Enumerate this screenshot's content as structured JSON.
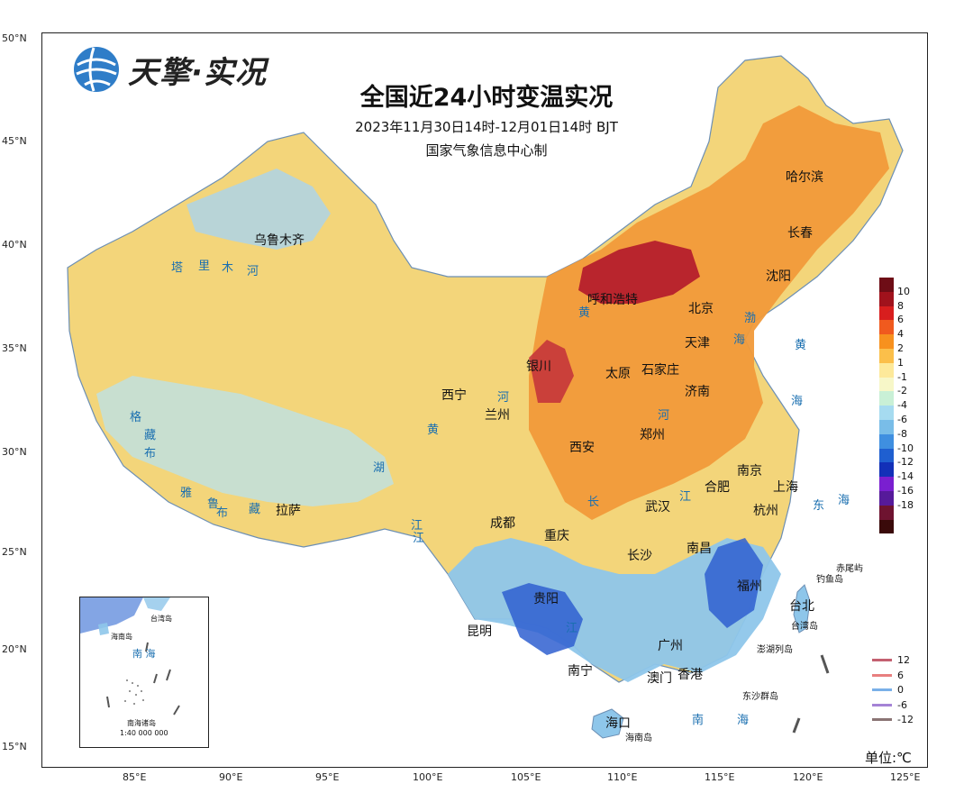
{
  "title": "全国近24小时变温实况",
  "subtitle": "2023年11月30日14时-12月01日14时 BJT",
  "producer": "国家气象信息中心制",
  "brand": "天擎·实况",
  "unit": "单位:℃",
  "lat_ticks": [
    "50°N",
    "45°N",
    "40°N",
    "35°N",
    "30°N",
    "25°N",
    "20°N",
    "15°N"
  ],
  "lon_ticks": [
    "85°E",
    "90°E",
    "95°E",
    "100°E",
    "105°E",
    "110°E",
    "115°E",
    "120°E",
    "125°E"
  ],
  "cities": [
    {
      "name": "哈尔滨"
    },
    {
      "name": "长春"
    },
    {
      "name": "沈阳"
    },
    {
      "name": "乌鲁木齐"
    },
    {
      "name": "呼和浩特"
    },
    {
      "name": "北京"
    },
    {
      "name": "天津"
    },
    {
      "name": "银川"
    },
    {
      "name": "太原"
    },
    {
      "name": "石家庄"
    },
    {
      "name": "济南"
    },
    {
      "name": "西宁"
    },
    {
      "name": "兰州"
    },
    {
      "name": "郑州"
    },
    {
      "name": "西安"
    },
    {
      "name": "南京"
    },
    {
      "name": "上海"
    },
    {
      "name": "合肥"
    },
    {
      "name": "杭州"
    },
    {
      "name": "武汉"
    },
    {
      "name": "拉萨"
    },
    {
      "name": "成都"
    },
    {
      "name": "重庆"
    },
    {
      "name": "长沙"
    },
    {
      "name": "南昌"
    },
    {
      "name": "贵阳"
    },
    {
      "name": "福州"
    },
    {
      "name": "台北"
    },
    {
      "name": "昆明"
    },
    {
      "name": "广州"
    },
    {
      "name": "南宁"
    },
    {
      "name": "澳门"
    },
    {
      "name": "香港"
    },
    {
      "name": "海口"
    }
  ],
  "rivers": [
    "塔",
    "里",
    "木",
    "河",
    "黄",
    "河",
    "河",
    "长",
    "江",
    "江",
    "格",
    "藏",
    "布",
    "雅",
    "鲁",
    "藏",
    "布",
    "黄",
    "江",
    "渤",
    "海",
    "湖",
    "江"
  ],
  "seas": [
    "黄",
    "海",
    "东",
    "海",
    "南",
    "海"
  ],
  "islands": [
    "赤尾屿",
    "钓鱼岛",
    "台湾岛",
    "澎湖列岛",
    "东沙群岛",
    "海南岛"
  ],
  "colorbar": {
    "colors": [
      "#6e0d16",
      "#a0121c",
      "#d81e1e",
      "#f05a1e",
      "#f7911e",
      "#fbbf4a",
      "#fde99a",
      "#f7f7c8",
      "#c9f0d6",
      "#a6dbf0",
      "#79bde8",
      "#3f8fe0",
      "#1f5fd0",
      "#1230b8",
      "#7a1fd0",
      "#561a9a",
      "#6e1330",
      "#3a0a0a"
    ],
    "labels": [
      "10",
      "8",
      "6",
      "4",
      "2",
      "1",
      "-1",
      "-2",
      "-4",
      "-6",
      "-8",
      "-10",
      "-12",
      "-14",
      "-16",
      "-18"
    ]
  },
  "contour_legend": [
    {
      "label": "12",
      "color": "#c46070"
    },
    {
      "label": "6",
      "color": "#e87f7f"
    },
    {
      "label": "0",
      "color": "#7ab0e8"
    },
    {
      "label": "-6",
      "color": "#a583d6"
    },
    {
      "label": "-12",
      "color": "#8a7474"
    }
  ],
  "inset": {
    "labels": [
      "台湾岛",
      "海南岛",
      "南 海",
      "南海诸岛",
      "1:40 000 000"
    ]
  }
}
